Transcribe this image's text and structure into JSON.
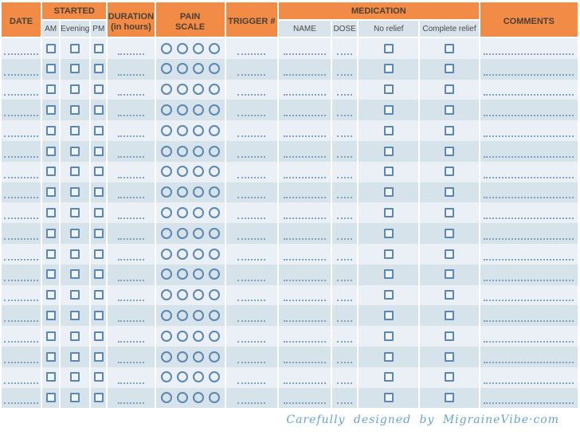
{
  "table": {
    "columns": {
      "date": "DATE",
      "started": "STARTED",
      "started_sub": [
        "AM",
        "Evening",
        "PM"
      ],
      "duration": [
        "DURATION",
        "(in hours)"
      ],
      "pain": [
        "PAIN",
        "SCALE"
      ],
      "trigger": "TRIGGER #",
      "medication": "MEDICATION",
      "medication_sub": [
        "NAME",
        "DOSE",
        "No relief",
        "Complete relief"
      ],
      "comments": "COMMENTS"
    },
    "row_count": 18,
    "pain_scale_circles": 4
  },
  "footer": {
    "credit": "Carefully designed by MigraineVibe·com"
  },
  "colors": {
    "header_orange": "#F18B45",
    "header_text": "#4B4036",
    "subheader_bg": "#D9E3EC",
    "subheader_text": "#484848",
    "row_light": "#EAF0F6",
    "row_dark": "#D6E3EA",
    "control_blue": "#5C87B2",
    "control_fill": "#EFF4F9",
    "dotted_line": "#7FA2C2",
    "footer_blue": "#67A4D2"
  }
}
